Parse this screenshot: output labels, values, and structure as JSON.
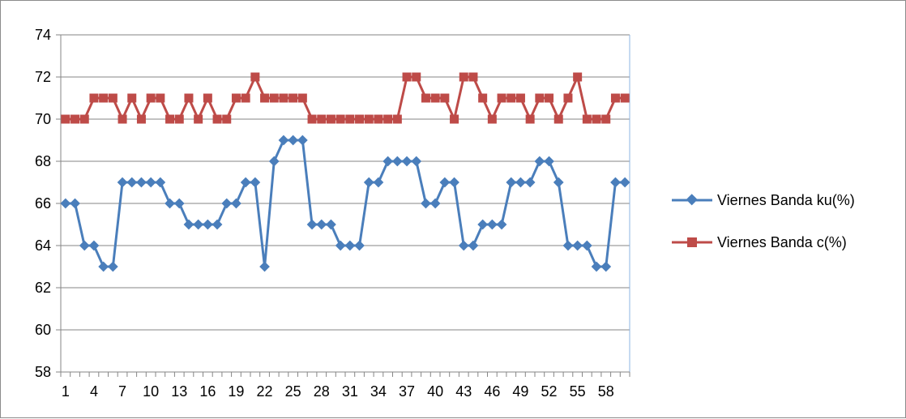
{
  "chart_data": {
    "type": "line",
    "x": [
      1,
      2,
      3,
      4,
      5,
      6,
      7,
      8,
      9,
      10,
      11,
      12,
      13,
      14,
      15,
      16,
      17,
      18,
      19,
      20,
      21,
      22,
      23,
      24,
      25,
      26,
      27,
      28,
      29,
      30,
      31,
      32,
      33,
      34,
      35,
      36,
      37,
      38,
      39,
      40,
      41,
      42,
      43,
      44,
      45,
      46,
      47,
      48,
      49,
      50,
      51,
      52,
      53,
      54,
      55,
      56,
      57,
      58,
      59,
      60
    ],
    "x_tick_labels": [
      "1",
      "4",
      "7",
      "10",
      "13",
      "16",
      "19",
      "22",
      "25",
      "28",
      "31",
      "34",
      "37",
      "40",
      "43",
      "46",
      "49",
      "52",
      "55",
      "58"
    ],
    "ylim": [
      58,
      74
    ],
    "y_ticks": [
      58,
      60,
      62,
      64,
      66,
      68,
      70,
      72,
      74
    ],
    "grid": "horizontal",
    "legend_position": "right",
    "series": [
      {
        "name": "Viernes Banda ku(%)",
        "color": "#4a7ebb",
        "marker": "diamond",
        "values": [
          66,
          66,
          64,
          64,
          63,
          63,
          67,
          67,
          67,
          67,
          67,
          66,
          66,
          65,
          65,
          65,
          65,
          66,
          66,
          67,
          67,
          63,
          68,
          69,
          69,
          69,
          65,
          65,
          65,
          64,
          64,
          64,
          67,
          67,
          68,
          68,
          68,
          68,
          66,
          66,
          67,
          67,
          64,
          64,
          65,
          65,
          65,
          67,
          67,
          67,
          68,
          68,
          67,
          64,
          64,
          64,
          63,
          63,
          67,
          67
        ]
      },
      {
        "name": "Viernes Banda c(%)",
        "color": "#be4b48",
        "marker": "square",
        "values": [
          70,
          70,
          70,
          71,
          71,
          71,
          70,
          71,
          70,
          71,
          71,
          70,
          70,
          71,
          70,
          71,
          70,
          70,
          71,
          71,
          72,
          71,
          71,
          71,
          71,
          71,
          70,
          70,
          70,
          70,
          70,
          70,
          70,
          70,
          70,
          70,
          72,
          72,
          71,
          71,
          71,
          70,
          72,
          72,
          71,
          70,
          71,
          71,
          71,
          70,
          71,
          71,
          70,
          71,
          72,
          70,
          70,
          70,
          71,
          71
        ]
      }
    ]
  }
}
